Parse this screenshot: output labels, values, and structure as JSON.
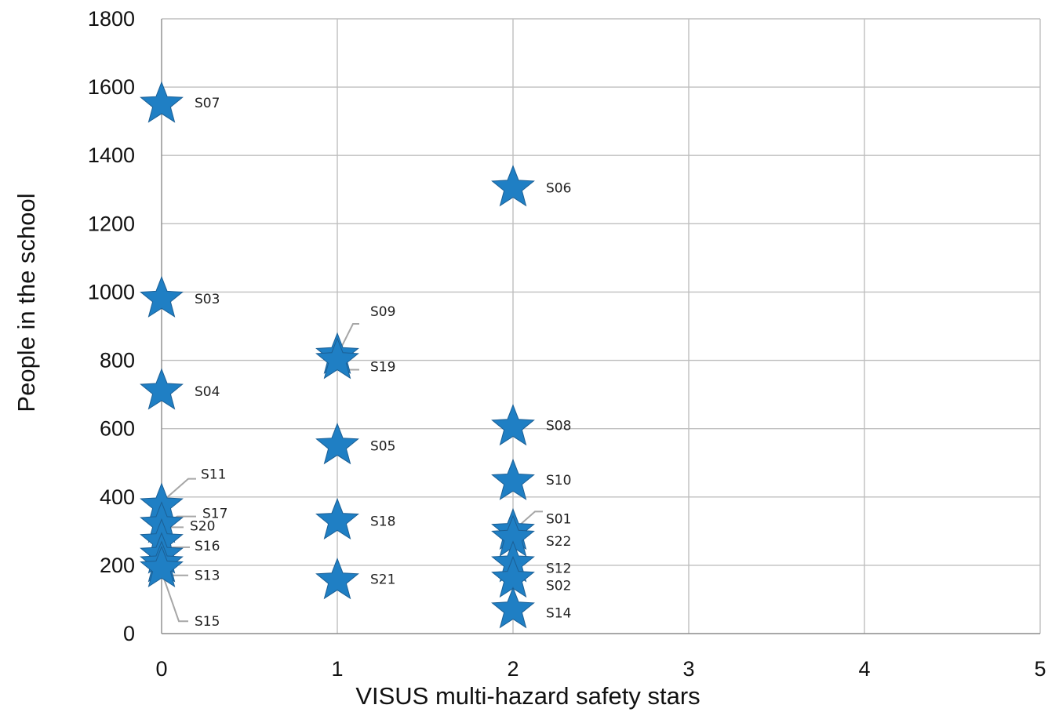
{
  "chart_data": {
    "type": "scatter",
    "title": "",
    "xlabel": "VISUS multi-hazard safety stars",
    "ylabel": "People in the school",
    "xlim": [
      0,
      5
    ],
    "ylim": [
      0,
      1800
    ],
    "xticks": [
      0,
      1,
      2,
      3,
      4,
      5
    ],
    "yticks": [
      0,
      200,
      400,
      600,
      800,
      1000,
      1200,
      1400,
      1600,
      1800
    ],
    "grid": true,
    "legend": "none",
    "marker": "star",
    "marker_color": "#1f7fc4",
    "points": [
      {
        "label": "S07",
        "x": 0,
        "y": 1550
      },
      {
        "label": "S06",
        "x": 2,
        "y": 1305
      },
      {
        "label": "S03",
        "x": 0,
        "y": 980
      },
      {
        "label": "S09",
        "x": 1,
        "y": 815
      },
      {
        "label": "S19",
        "x": 1,
        "y": 800
      },
      {
        "label": "S04",
        "x": 0,
        "y": 710
      },
      {
        "label": "S08",
        "x": 2,
        "y": 605
      },
      {
        "label": "S05",
        "x": 1,
        "y": 550
      },
      {
        "label": "S10",
        "x": 2,
        "y": 445
      },
      {
        "label": "S11",
        "x": 0,
        "y": 375
      },
      {
        "label": "S17",
        "x": 0,
        "y": 320
      },
      {
        "label": "S18",
        "x": 1,
        "y": 330
      },
      {
        "label": "S01",
        "x": 2,
        "y": 300
      },
      {
        "label": "S22",
        "x": 2,
        "y": 280
      },
      {
        "label": "S20",
        "x": 0,
        "y": 270
      },
      {
        "label": "S16",
        "x": 0,
        "y": 230
      },
      {
        "label": "S13",
        "x": 0,
        "y": 205
      },
      {
        "label": "S12",
        "x": 2,
        "y": 205
      },
      {
        "label": "S15",
        "x": 0,
        "y": 190
      },
      {
        "label": "S02",
        "x": 2,
        "y": 160
      },
      {
        "label": "S21",
        "x": 1,
        "y": 155
      },
      {
        "label": "S14",
        "x": 2,
        "y": 70
      }
    ]
  }
}
